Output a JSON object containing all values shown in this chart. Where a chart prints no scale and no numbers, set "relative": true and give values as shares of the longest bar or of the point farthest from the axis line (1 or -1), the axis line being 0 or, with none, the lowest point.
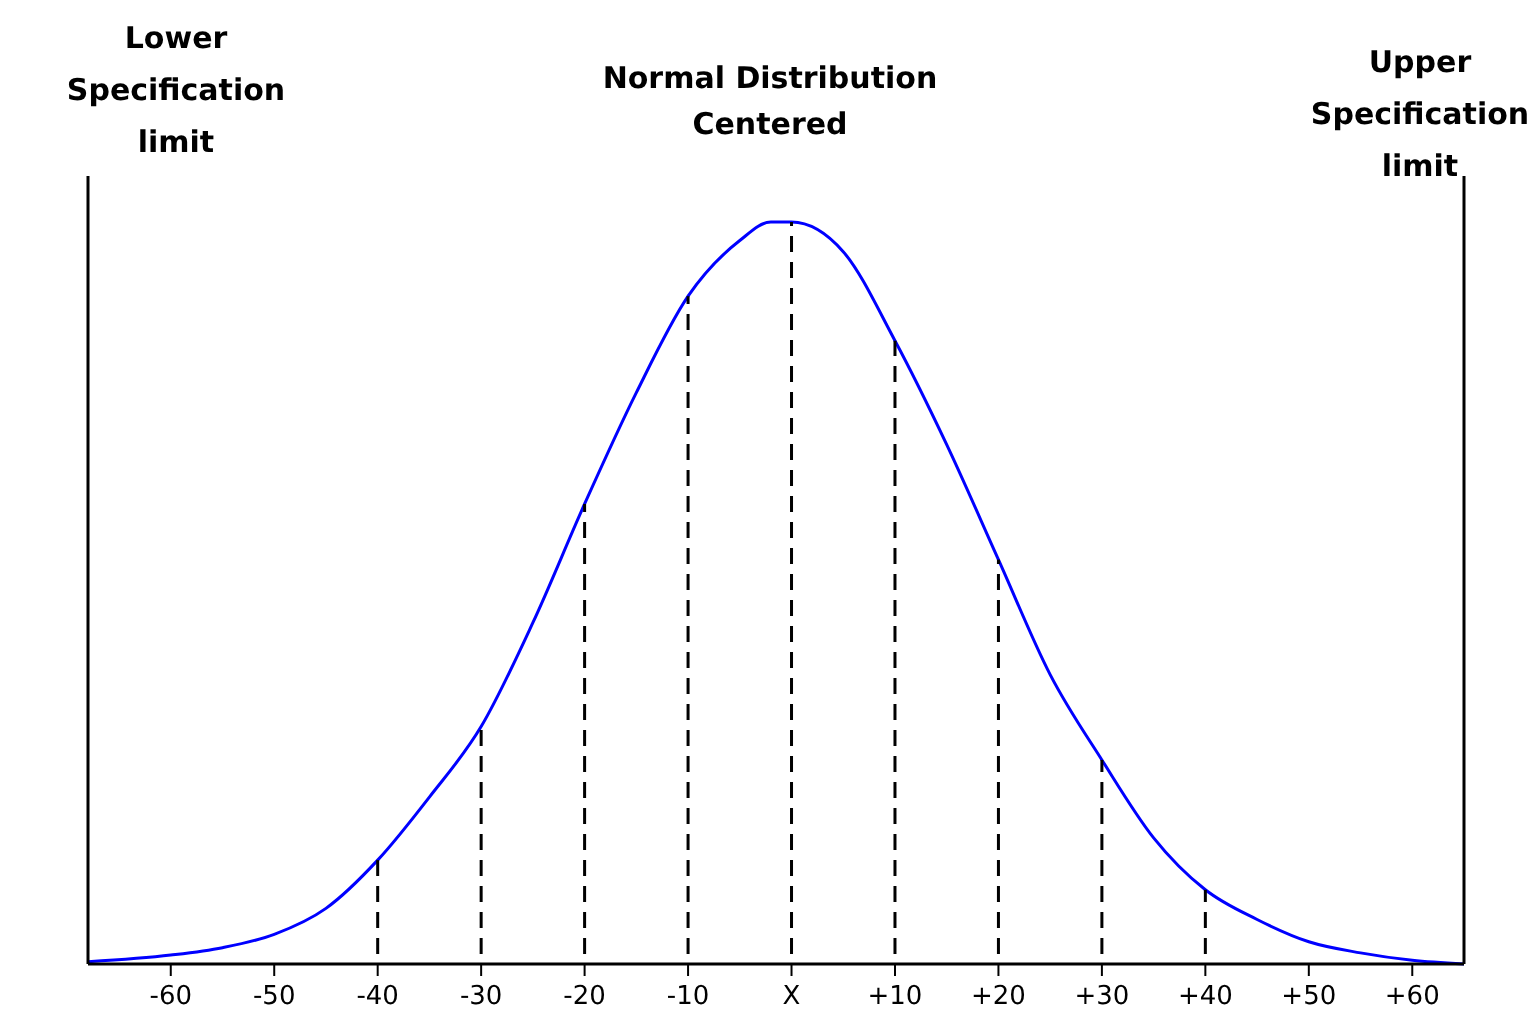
{
  "chart_data": {
    "type": "line",
    "title": "Normal Distribution Centered",
    "relative": true,
    "xlim": [
      -68,
      65
    ],
    "xticks": [
      -60,
      -50,
      -40,
      -30,
      -20,
      -10,
      {
        "value": 0,
        "label": "X"
      },
      {
        "value": 10,
        "label": "+10"
      },
      {
        "value": 20,
        "label": "+20"
      },
      {
        "value": 30,
        "label": "+30"
      },
      {
        "value": 40,
        "label": "+40"
      },
      {
        "value": 50,
        "label": "+50"
      },
      {
        "value": 60,
        "label": "+60"
      }
    ],
    "series": [
      {
        "color": "#0000ff",
        "marker": "none",
        "line_style": "solid",
        "x": [
          -68,
          -60,
          -55,
          -50,
          -45,
          -40,
          -35,
          -30,
          -25,
          -20,
          -15,
          -10,
          -5,
          -2,
          0,
          5,
          10,
          15,
          20,
          25,
          30,
          35,
          40,
          45,
          50,
          55,
          60,
          65
        ],
        "values": [
          0.003,
          0.012,
          0.022,
          0.04,
          0.075,
          0.14,
          0.225,
          0.32,
          0.46,
          0.62,
          0.77,
          0.9,
          0.975,
          1,
          1,
          0.96,
          0.84,
          0.7,
          0.545,
          0.39,
          0.275,
          0.17,
          0.1,
          0.06,
          0.03,
          0.015,
          0.005,
          0
        ]
      },
      {
        "type": "bar",
        "color": "#000000",
        "line_style": "dashed",
        "x": [
          -40,
          -30,
          -20,
          -10,
          0,
          10,
          20,
          30,
          40
        ],
        "values": [
          0.14,
          0.32,
          0.62,
          0.9,
          1,
          0.84,
          0.545,
          0.275,
          0.1
        ]
      }
    ],
    "ref_lines": [
      {
        "axis": "x",
        "value": -68,
        "label": "Lower Specification limit",
        "color": "#000000",
        "line_style": "solid"
      },
      {
        "axis": "x",
        "value": 65,
        "label": "Upper Specification limit",
        "color": "#000000",
        "line_style": "solid"
      }
    ]
  }
}
